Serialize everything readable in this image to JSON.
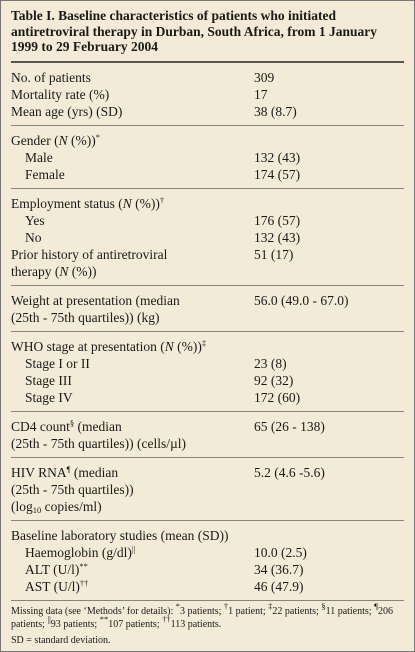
{
  "title": "Table I. Baseline characteristics of patients who initiated antiretroviral therapy in Durban, South Africa, from 1 January 1999 to 29 February 2004",
  "groups": [
    {
      "rows": [
        {
          "label": [
            [
              "No. of patients"
            ]
          ],
          "value": "309"
        },
        {
          "label": [
            [
              "Mortality rate (%)"
            ]
          ],
          "value": "17"
        },
        {
          "label": [
            [
              "Mean age (yrs) (SD)"
            ]
          ],
          "value": "38 (8.7)"
        }
      ]
    },
    {
      "rows": [
        {
          "label": [
            [
              "Gender (",
              {
                "em": "N"
              },
              " (%))",
              {
                "sup": "*"
              }
            ]
          ],
          "value": null
        },
        {
          "label": [
            [
              "Male"
            ]
          ],
          "value": "132 (43)",
          "indent": true
        },
        {
          "label": [
            [
              "Female"
            ]
          ],
          "value": "174 (57)",
          "indent": true
        }
      ]
    },
    {
      "rows": [
        {
          "label": [
            [
              "Employment status (",
              {
                "em": "N"
              },
              " (%))",
              {
                "sup": "†"
              }
            ]
          ],
          "value": null
        },
        {
          "label": [
            [
              "Yes"
            ]
          ],
          "value": "176 (57)",
          "indent": true
        },
        {
          "label": [
            [
              "No"
            ]
          ],
          "value": "132 (43)",
          "indent": true
        },
        {
          "label": [
            [
              "Prior history of antiretroviral"
            ],
            [
              "therapy (",
              {
                "em": "N"
              },
              " (%))"
            ]
          ],
          "value": "51 (17)"
        }
      ]
    },
    {
      "rows": [
        {
          "label": [
            [
              "Weight at presentation (median"
            ],
            [
              "(25th - 75th quartiles)) (kg)"
            ]
          ],
          "value": "56.0 (49.0 - 67.0)"
        }
      ]
    },
    {
      "rows": [
        {
          "label": [
            [
              "WHO stage at presentation (",
              {
                "em": "N"
              },
              " (%))",
              {
                "sup": "‡"
              }
            ]
          ],
          "value": null
        },
        {
          "label": [
            [
              "Stage I or II"
            ]
          ],
          "value": "23 (8)",
          "indent": true
        },
        {
          "label": [
            [
              "Stage III"
            ]
          ],
          "value": "92 (32)",
          "indent": true
        },
        {
          "label": [
            [
              "Stage IV"
            ]
          ],
          "value": "172 (60)",
          "indent": true
        }
      ]
    },
    {
      "rows": [
        {
          "label": [
            [
              "CD4 count",
              {
                "sup": "§"
              },
              " (median"
            ],
            [
              "(25th - 75th quartiles)) (cells/µl)"
            ]
          ],
          "value": "65 (26 - 138)"
        }
      ]
    },
    {
      "rows": [
        {
          "label": [
            [
              "HIV RNA",
              {
                "sup": "¶"
              },
              " (median"
            ],
            [
              "(25th - 75th quartiles))"
            ],
            [
              "(log",
              {
                "sub": "10"
              },
              " copies/ml)"
            ]
          ],
          "value": "5.2 (4.6 -5.6)"
        }
      ]
    },
    {
      "rows": [
        {
          "label": [
            [
              "Baseline laboratory studies (mean (SD))"
            ]
          ],
          "value": null
        },
        {
          "label": [
            [
              "Haemoglobin (g/dl)",
              {
                "sup": "||"
              }
            ]
          ],
          "value": "10.0 (2.5)",
          "indent": true
        },
        {
          "label": [
            [
              "ALT (U/l)",
              {
                "sup": "**"
              }
            ]
          ],
          "value": "34 (36.7)",
          "indent": true
        },
        {
          "label": [
            [
              "AST (U/l)",
              {
                "sup": "††"
              }
            ]
          ],
          "value": "46 (47.9)",
          "indent": true
        }
      ]
    }
  ],
  "footnote": [
    "Missing data (see ‘Methods’ for details): ",
    {
      "sup": "*"
    },
    "3 patients; ",
    {
      "sup": "†"
    },
    "1 patient; ",
    {
      "sup": "‡"
    },
    "22 patients; ",
    {
      "sup": "§"
    },
    "11 patients; ",
    {
      "sup": "¶"
    },
    "206 patients; ",
    {
      "sup": "||"
    },
    "93 patients; ",
    {
      "sup": "**"
    },
    "107 patients; ",
    {
      "sup": "††"
    },
    "113 patients."
  ],
  "abbreviation": "SD = standard deviation."
}
